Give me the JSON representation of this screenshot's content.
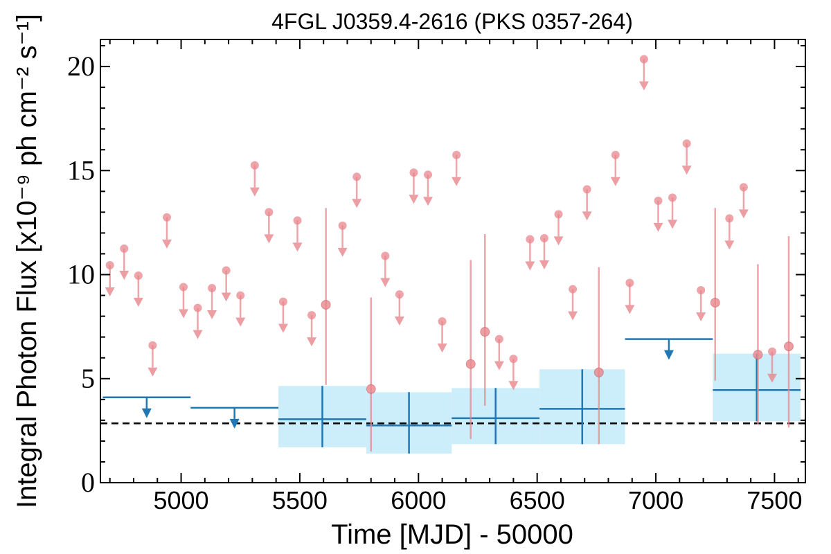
{
  "chart_data": {
    "type": "scatter",
    "title": "4FGL J0359.4-2616 (PKS 0357-264)",
    "xlabel": "Time [MJD] - 50000",
    "ylabel": "Integral Photon Flux [x10⁻⁹ ph cm⁻² s⁻¹]",
    "xlim": [
      4660,
      7630
    ],
    "ylim": [
      0,
      21.3
    ],
    "x_ticks": [
      5000,
      5500,
      6000,
      6500,
      7000,
      7500
    ],
    "y_ticks": [
      0,
      5,
      10,
      15,
      20
    ],
    "reference_line": 2.85,
    "colors": {
      "short_bin": "#e8868c",
      "long_bin": "#1f77b4",
      "band": "#cceefb",
      "reference": "#000000"
    },
    "series": [
      {
        "kind": "short_bin_upper_limits",
        "points": [
          {
            "x": 4700,
            "y": 10.45
          },
          {
            "x": 4760,
            "y": 11.25
          },
          {
            "x": 4820,
            "y": 9.95
          },
          {
            "x": 4880,
            "y": 6.6
          },
          {
            "x": 4940,
            "y": 12.75
          },
          {
            "x": 5010,
            "y": 9.4
          },
          {
            "x": 5070,
            "y": 8.4
          },
          {
            "x": 5130,
            "y": 9.35
          },
          {
            "x": 5190,
            "y": 10.2
          },
          {
            "x": 5250,
            "y": 9.0
          },
          {
            "x": 5310,
            "y": 15.25
          },
          {
            "x": 5370,
            "y": 13.0
          },
          {
            "x": 5430,
            "y": 8.7
          },
          {
            "x": 5490,
            "y": 12.6
          },
          {
            "x": 5550,
            "y": 8.05
          },
          {
            "x": 5680,
            "y": 12.35
          },
          {
            "x": 5740,
            "y": 14.7
          },
          {
            "x": 5860,
            "y": 10.9
          },
          {
            "x": 5920,
            "y": 9.05
          },
          {
            "x": 5980,
            "y": 14.9
          },
          {
            "x": 6040,
            "y": 14.8
          },
          {
            "x": 6100,
            "y": 7.75
          },
          {
            "x": 6160,
            "y": 15.75
          },
          {
            "x": 6340,
            "y": 6.9
          },
          {
            "x": 6400,
            "y": 5.95
          },
          {
            "x": 6470,
            "y": 11.7
          },
          {
            "x": 6530,
            "y": 11.75
          },
          {
            "x": 6590,
            "y": 12.9
          },
          {
            "x": 6650,
            "y": 9.3
          },
          {
            "x": 6710,
            "y": 14.1
          },
          {
            "x": 6830,
            "y": 15.75
          },
          {
            "x": 6890,
            "y": 9.6
          },
          {
            "x": 6950,
            "y": 20.35
          },
          {
            "x": 7010,
            "y": 13.55
          },
          {
            "x": 7070,
            "y": 13.7
          },
          {
            "x": 7130,
            "y": 16.3
          },
          {
            "x": 7190,
            "y": 9.25
          },
          {
            "x": 7310,
            "y": 12.7
          },
          {
            "x": 7370,
            "y": 14.2
          },
          {
            "x": 7490,
            "y": 6.3
          }
        ]
      },
      {
        "kind": "short_bin_detections",
        "points": [
          {
            "x": 5610,
            "y": 8.55,
            "ylo": 4.7,
            "yhi": 13.2
          },
          {
            "x": 5800,
            "y": 4.5,
            "ylo": 1.5,
            "yhi": 8.9
          },
          {
            "x": 6220,
            "y": 5.7,
            "ylo": 2.1,
            "yhi": 10.7
          },
          {
            "x": 6280,
            "y": 7.25,
            "ylo": 3.7,
            "yhi": 11.95
          },
          {
            "x": 6760,
            "y": 5.3,
            "ylo": 1.85,
            "yhi": 10.35
          },
          {
            "x": 7250,
            "y": 8.65,
            "ylo": 4.9,
            "yhi": 13.2
          },
          {
            "x": 7430,
            "y": 6.15,
            "ylo": 2.8,
            "yhi": 10.5
          },
          {
            "x": 7560,
            "y": 6.55,
            "ylo": 2.65,
            "yhi": 11.85
          }
        ]
      },
      {
        "kind": "long_bin_upper_limits",
        "bins": [
          {
            "x_start": 4670,
            "x_end": 5040,
            "x": 4855,
            "y": 4.1
          },
          {
            "x_start": 5040,
            "x_end": 5410,
            "x": 5225,
            "y": 3.6
          },
          {
            "x_start": 6870,
            "x_end": 7240,
            "x": 7055,
            "y": 6.9
          }
        ]
      },
      {
        "kind": "long_bin_detections",
        "bins": [
          {
            "x_start": 5410,
            "x_end": 5780,
            "x": 5595,
            "y": 3.05,
            "ylo": 1.7,
            "yhi": 4.65
          },
          {
            "x_start": 5780,
            "x_end": 6140,
            "x": 5960,
            "y": 2.75,
            "ylo": 1.4,
            "yhi": 4.35
          },
          {
            "x_start": 6140,
            "x_end": 6510,
            "x": 6325,
            "y": 3.1,
            "ylo": 1.85,
            "yhi": 4.55
          },
          {
            "x_start": 6510,
            "x_end": 6870,
            "x": 6690,
            "y": 3.55,
            "ylo": 1.85,
            "yhi": 5.45
          },
          {
            "x_start": 7240,
            "x_end": 7610,
            "x": 7425,
            "y": 4.45,
            "ylo": 2.95,
            "yhi": 6.2
          }
        ]
      }
    ]
  }
}
